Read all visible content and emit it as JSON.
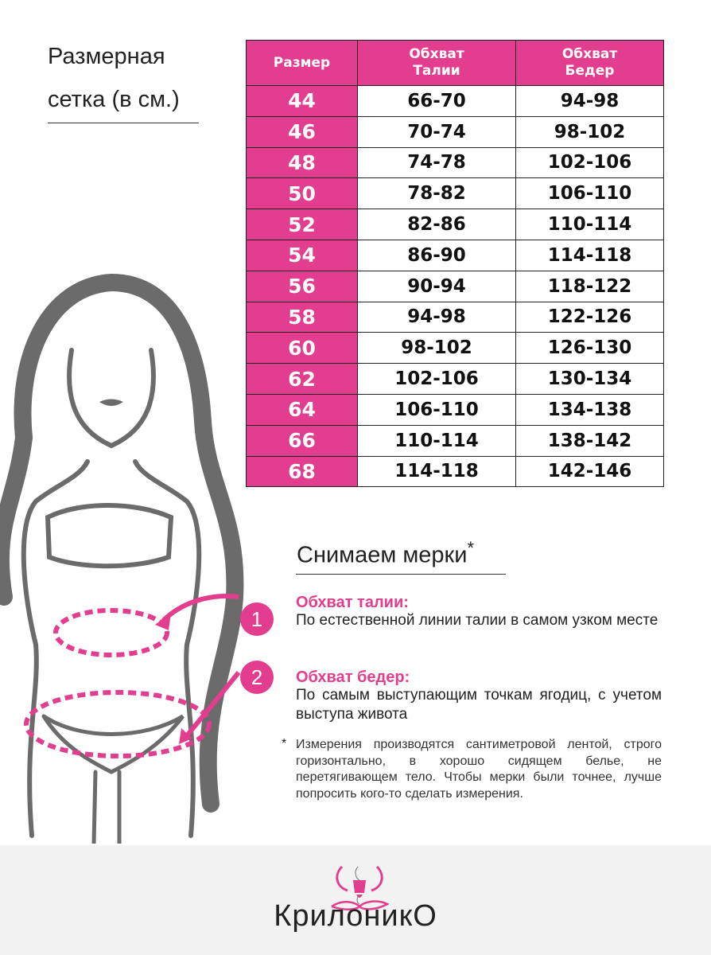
{
  "title_lines": [
    "Размерная",
    "сетка (в см.)"
  ],
  "table": {
    "headers": [
      "Размер",
      "Обхват Талии",
      "Обхват Бедер"
    ],
    "rows": [
      [
        "44",
        "66-70",
        "94-98"
      ],
      [
        "46",
        "70-74",
        "98-102"
      ],
      [
        "48",
        "74-78",
        "102-106"
      ],
      [
        "50",
        "78-82",
        "106-110"
      ],
      [
        "52",
        "82-86",
        "110-114"
      ],
      [
        "54",
        "86-90",
        "114-118"
      ],
      [
        "56",
        "90-94",
        "118-122"
      ],
      [
        "58",
        "94-98",
        "122-126"
      ],
      [
        "60",
        "98-102",
        "126-130"
      ],
      [
        "62",
        "102-106",
        "130-134"
      ],
      [
        "64",
        "106-110",
        "134-138"
      ],
      [
        "66",
        "110-114",
        "138-142"
      ],
      [
        "68",
        "114-118",
        "142-146"
      ]
    ]
  },
  "measure": {
    "title": "Снимаем мерки",
    "star": "*",
    "items": [
      {
        "num": "1",
        "title": "Обхват талии:",
        "text": "По естественной линии талии в самом узком месте"
      },
      {
        "num": "2",
        "title": "Обхват бедер:",
        "text": "По самым выступающим точкам ягодиц, с учетом выступа живота"
      }
    ],
    "note_star": "*",
    "note": "Измерения производятся сантиметровой лентой, строго горизонтально, в хорошо сидящем белье, не перетягивающем тело. Чтобы мерки были точнее, лучше попросить кого-то сделать измерения."
  },
  "brand": "КрилоникО",
  "colors": {
    "accent": "#e23d8e",
    "figure": "#6b6b6b",
    "footer": "#f2f2f2"
  }
}
